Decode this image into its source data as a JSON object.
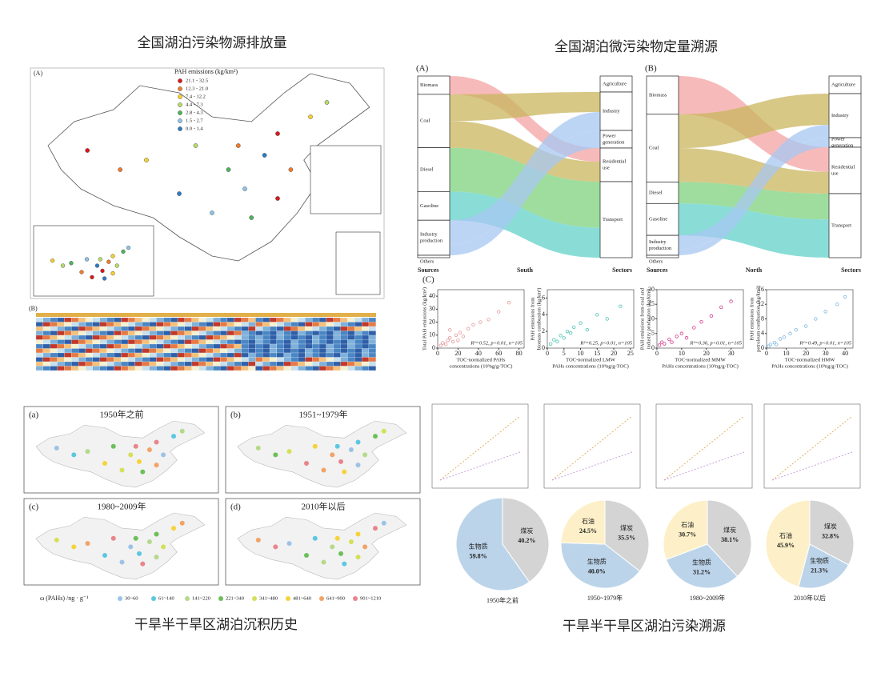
{
  "titles": {
    "emission": "全国湖泊污染物源排放量",
    "tracing": "全国湖泊微污染物定量溯源",
    "history": "干旱半干旱区湖泊沉积历史",
    "arid_tracing": "干旱半干旱区湖泊污染溯源"
  },
  "emission_map": {
    "label": "(A)",
    "legend_title": "PAH emissions (kg/km²)",
    "classes": [
      {
        "label": "21.1 - 32.5",
        "color": "#d7191c"
      },
      {
        "label": "12.3 - 21.0",
        "color": "#f07c2a"
      },
      {
        "label": "7.4 - 12.2",
        "color": "#f6d02f"
      },
      {
        "label": "4.4 - 7.3",
        "color": "#b8dc6a"
      },
      {
        "label": "2.8 - 4.3",
        "color": "#4fb45a"
      },
      {
        "label": "1.5 - 2.7",
        "color": "#8fc4ea"
      },
      {
        "label": "0.0 - 1.4",
        "color": "#2f7bc4"
      }
    ],
    "heatmap_label": "(B)"
  },
  "sankey": {
    "panels": [
      {
        "label": "(A)",
        "region": "South",
        "sources_heading": "Sources",
        "sectors_heading": "Sectors",
        "sources": [
          [
            "Biomass"
          ],
          [
            "Coal"
          ],
          [
            "Diesel"
          ],
          [
            "Gasoline"
          ],
          [
            "Industry",
            "production"
          ],
          [
            "Others"
          ]
        ],
        "sectors": [
          [
            "Agriculture"
          ],
          [
            "Industry"
          ],
          [
            "Power",
            "generation"
          ],
          [
            "Residential",
            "use"
          ],
          [
            "Transport"
          ]
        ]
      },
      {
        "label": "(B)",
        "region": "North",
        "sources_heading": "Sources",
        "sectors_heading": "Sectors",
        "sources": [
          [
            "Biomass"
          ],
          [
            "Coal"
          ],
          [
            "Diesel"
          ],
          [
            "Gasoline"
          ],
          [
            "Industry",
            "production"
          ],
          [
            "Others"
          ]
        ],
        "sectors": [
          [
            "Agriculture"
          ],
          [
            "Industry"
          ],
          [
            "Power",
            "generation"
          ],
          [
            "Residential",
            "use"
          ],
          [
            "Transport"
          ]
        ]
      }
    ],
    "scatter_label": "(C)"
  },
  "chart_data": [
    {
      "type": "scatter",
      "ylabel": [
        "Total PAH emissions (kg/km²)"
      ],
      "xlabel": [
        "TOC-normalized PAHs",
        "concentrations (10³ng/g-TOC)"
      ],
      "annotation": "R²=0.52, p<0.01, n=105",
      "color": "#e59a9a",
      "x": [
        3,
        5,
        8,
        10,
        12,
        15,
        18,
        22,
        25,
        30,
        35,
        42,
        50,
        60,
        70,
        12,
        20
      ],
      "values": [
        2,
        4,
        3,
        6,
        8,
        5,
        10,
        12,
        9,
        15,
        18,
        20,
        22,
        28,
        35,
        14,
        6
      ],
      "xlim": [
        0,
        85
      ],
      "ylim": [
        0,
        45
      ],
      "xticks": [
        0,
        20,
        40,
        60,
        80
      ],
      "yticks": [
        0,
        10,
        20,
        30,
        40
      ]
    },
    {
      "type": "scatter",
      "ylabel": [
        "PAH emissions from",
        "biomass combustion (kg/km²)"
      ],
      "xlabel": [
        "TOC-normalized LMW",
        "PAHs concentrations (10³ng/g-TOC)"
      ],
      "annotation": "R²=0.25, p<0.01, n=105",
      "color": "#4fc4b4",
      "x": [
        1,
        2,
        3,
        4,
        5,
        6,
        7,
        8,
        10,
        12,
        15,
        18,
        22
      ],
      "values": [
        0.5,
        1,
        0.8,
        1.5,
        1.2,
        2,
        1.8,
        2.5,
        3,
        2.2,
        4,
        3.5,
        5
      ],
      "xlim": [
        0,
        26
      ],
      "ylim": [
        0,
        7
      ],
      "xticks": [
        0,
        5,
        10,
        15,
        20,
        25
      ],
      "yticks": [
        0,
        2,
        4,
        6
      ]
    },
    {
      "type": "scatter",
      "ylabel": [
        "PAH emissions from coal and",
        "industry production (kg/km²)"
      ],
      "xlabel": [
        "TOC-normalized MMW",
        "PAHs concentrations (10³ng/g-TOC)"
      ],
      "annotation": "R²=0.36, p<0.01, n=105",
      "color": "#d63c8c",
      "x": [
        1,
        2,
        3,
        5,
        6,
        8,
        10,
        12,
        15,
        18,
        22,
        26,
        30
      ],
      "values": [
        1,
        2,
        1.5,
        3,
        2,
        4,
        5,
        3.5,
        7,
        9,
        11,
        14,
        16
      ],
      "xlim": [
        0,
        35
      ],
      "ylim": [
        0,
        20
      ],
      "xticks": [
        0,
        10,
        20,
        30
      ],
      "yticks": [
        0,
        5,
        10,
        15,
        20
      ]
    },
    {
      "type": "scatter",
      "ylabel": [
        "PAH emissions from",
        "petroleum combustion (kg/km²)"
      ],
      "xlabel": [
        "TOC-normalized HMW",
        "PAHs concentrations (10³ng/g-TOC)"
      ],
      "annotation": "R²=0.49, p<0.01, n=105",
      "color": "#7fb8e0",
      "x": [
        1,
        2,
        4,
        5,
        7,
        9,
        12,
        15,
        20,
        25,
        30,
        36,
        40
      ],
      "values": [
        0.5,
        1,
        1.5,
        1,
        2.5,
        3,
        4,
        5,
        6,
        8,
        10,
        12,
        14
      ],
      "xlim": [
        0,
        44
      ],
      "ylim": [
        0,
        16
      ],
      "xticks": [
        0,
        10,
        20,
        30,
        40
      ],
      "yticks": [
        0,
        4,
        8,
        12,
        16
      ]
    },
    {
      "type": "pie",
      "title": "1950年之前",
      "categories": [
        "煤炭",
        "生物质"
      ],
      "values": [
        40.2,
        59.8
      ],
      "value_labels": [
        "40.2%",
        "59.8%"
      ],
      "colors": [
        "#d4d4d4",
        "#bcd4ea"
      ]
    },
    {
      "type": "pie",
      "title": "1950~1979年",
      "categories": [
        "煤炭",
        "生物质",
        "石油"
      ],
      "values": [
        35.5,
        40.0,
        24.5
      ],
      "value_labels": [
        "35.5%",
        "40.0%",
        "24.5%"
      ],
      "colors": [
        "#d4d4d4",
        "#bcd4ea",
        "#fdf0c8"
      ]
    },
    {
      "type": "pie",
      "title": "1980~2009年",
      "categories": [
        "煤炭",
        "生物质",
        "石油"
      ],
      "values": [
        38.1,
        31.2,
        30.7
      ],
      "value_labels": [
        "38.1%",
        "31.2%",
        "30.7%"
      ],
      "colors": [
        "#d4d4d4",
        "#bcd4ea",
        "#fdf0c8"
      ]
    },
    {
      "type": "pie",
      "title": "2010年以后",
      "categories": [
        "煤炭",
        "生物质",
        "石油"
      ],
      "values": [
        32.8,
        21.3,
        45.9
      ],
      "value_labels": [
        "32.8%",
        "21.3%",
        "45.9%"
      ],
      "colors": [
        "#d4d4d4",
        "#bcd4ea",
        "#fdf0c8"
      ]
    }
  ],
  "history_maps": {
    "panels": [
      {
        "label": "(a)",
        "title": "1950年之前"
      },
      {
        "label": "(b)",
        "title": "1951~1979年"
      },
      {
        "label": "(c)",
        "title": "1980~2009年"
      },
      {
        "label": "(d)",
        "title": "2010年以后"
      }
    ],
    "legend_title": "ω (PAHs) /ng · g⁻¹",
    "classes": [
      {
        "label": "30~60",
        "color": "#9cc3e6"
      },
      {
        "label": "61~140",
        "color": "#5bc8e0"
      },
      {
        "label": "141~220",
        "color": "#b5d98b"
      },
      {
        "label": "221~340",
        "color": "#6cbf5a"
      },
      {
        "label": "341~480",
        "color": "#d4e05a"
      },
      {
        "label": "481~640",
        "color": "#f5d33a"
      },
      {
        "label": "641~900",
        "color": "#f3a268"
      },
      {
        "label": "901~1210",
        "color": "#e8858a"
      }
    ]
  }
}
